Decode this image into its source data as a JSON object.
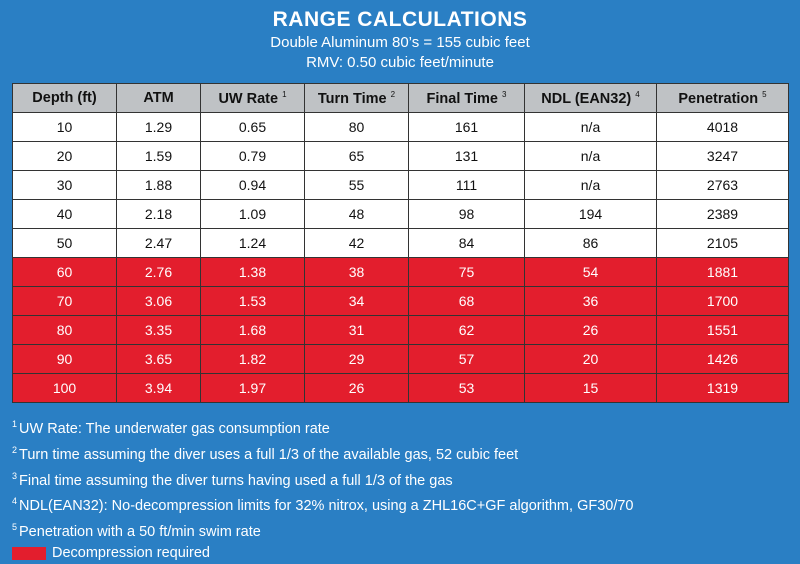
{
  "header": {
    "title": "RANGE CALCULATIONS",
    "line1": "Double Aluminum 80’s = 155 cubic feet",
    "line2": "RMV: 0.50 cubic feet/minute"
  },
  "table": {
    "columns": [
      {
        "label": "Depth (ft)",
        "note": ""
      },
      {
        "label": "ATM",
        "note": ""
      },
      {
        "label": "UW Rate",
        "note": "1"
      },
      {
        "label": "Turn Time",
        "note": "2"
      },
      {
        "label": "Final Time",
        "note": "3"
      },
      {
        "label": "NDL (EAN32)",
        "note": "4"
      },
      {
        "label": "Penetration",
        "note": "5"
      }
    ],
    "rows": [
      {
        "deco": false,
        "cells": [
          "10",
          "1.29",
          "0.65",
          "80",
          "161",
          "n/a",
          "4018"
        ]
      },
      {
        "deco": false,
        "cells": [
          "20",
          "1.59",
          "0.79",
          "65",
          "131",
          "n/a",
          "3247"
        ]
      },
      {
        "deco": false,
        "cells": [
          "30",
          "1.88",
          "0.94",
          "55",
          "111",
          "n/a",
          "2763"
        ]
      },
      {
        "deco": false,
        "cells": [
          "40",
          "2.18",
          "1.09",
          "48",
          "98",
          "194",
          "2389"
        ]
      },
      {
        "deco": false,
        "cells": [
          "50",
          "2.47",
          "1.24",
          "42",
          "84",
          "86",
          "2105"
        ]
      },
      {
        "deco": true,
        "cells": [
          "60",
          "2.76",
          "1.38",
          "38",
          "75",
          "54",
          "1881"
        ]
      },
      {
        "deco": true,
        "cells": [
          "70",
          "3.06",
          "1.53",
          "34",
          "68",
          "36",
          "1700"
        ]
      },
      {
        "deco": true,
        "cells": [
          "80",
          "3.35",
          "1.68",
          "31",
          "62",
          "26",
          "1551"
        ]
      },
      {
        "deco": true,
        "cells": [
          "90",
          "3.65",
          "1.82",
          "29",
          "57",
          "20",
          "1426"
        ]
      },
      {
        "deco": true,
        "cells": [
          "100",
          "3.94",
          "1.97",
          "26",
          "53",
          "15",
          "1319"
        ]
      }
    ]
  },
  "notes": [
    {
      "num": "1",
      "text": "UW Rate: The underwater gas consumption rate"
    },
    {
      "num": "2",
      "text": "Turn time assuming the diver uses a full 1/3 of the available gas, 52 cubic feet"
    },
    {
      "num": "3",
      "text": "Final time assuming the diver turns having used a full 1/3 of the gas"
    },
    {
      "num": "4",
      "text": "NDL(EAN32): No-decompression limits for 32% nitrox, using a ZHL16C+GF algorithm, GF30/70"
    },
    {
      "num": "5",
      "text": "Penetration with a 50 ft/min swim rate"
    }
  ],
  "legend": {
    "label": "Decompression required",
    "color": "#e31e2d"
  }
}
